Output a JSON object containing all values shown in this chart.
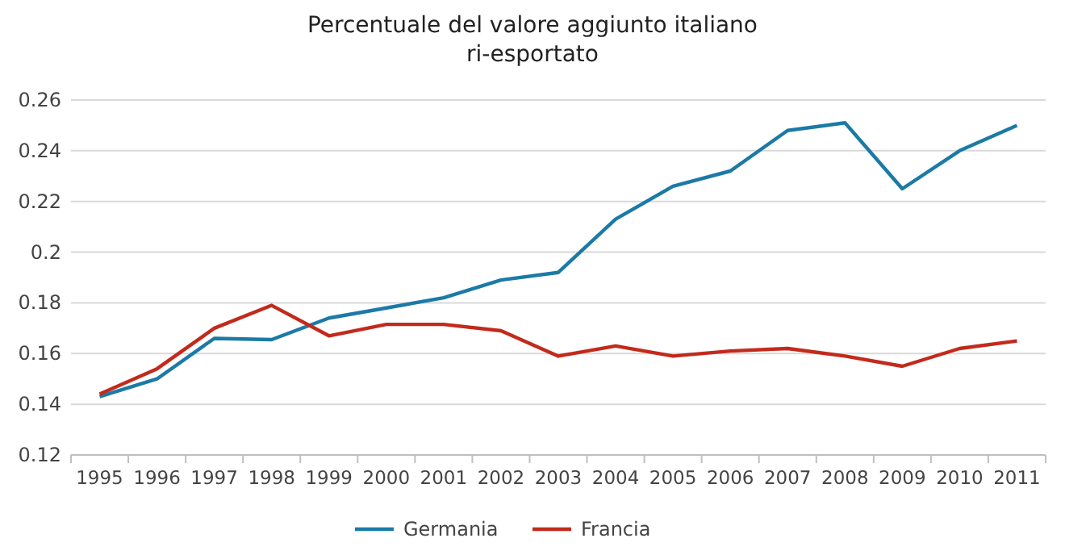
{
  "chart_data": {
    "type": "line",
    "title": "Percentuale del valore aggiunto italiano\nri-esportato",
    "categories": [
      "1995",
      "1996",
      "1997",
      "1998",
      "1999",
      "2000",
      "2001",
      "2002",
      "2003",
      "2004",
      "2005",
      "2006",
      "2007",
      "2008",
      "2009",
      "2010",
      "2011"
    ],
    "series": [
      {
        "name": "Germania",
        "color": "#1b7aa6",
        "values": [
          0.143,
          0.15,
          0.166,
          0.1655,
          0.174,
          0.178,
          0.182,
          0.189,
          0.192,
          0.213,
          0.226,
          0.232,
          0.248,
          0.251,
          0.225,
          0.24,
          0.25
        ]
      },
      {
        "name": "Francia",
        "color": "#c22a1c",
        "values": [
          0.144,
          0.154,
          0.17,
          0.179,
          0.167,
          0.1715,
          0.1715,
          0.169,
          0.159,
          0.163,
          0.159,
          0.161,
          0.162,
          0.159,
          0.155,
          0.162,
          0.165
        ]
      }
    ],
    "ylim": [
      0.12,
      0.26
    ],
    "yticks": [
      0.12,
      0.14,
      0.16,
      0.18,
      0.2,
      0.22,
      0.24,
      0.26
    ],
    "grid": "y",
    "legend": "bottom",
    "marker": "none",
    "line_style": "solid"
  }
}
